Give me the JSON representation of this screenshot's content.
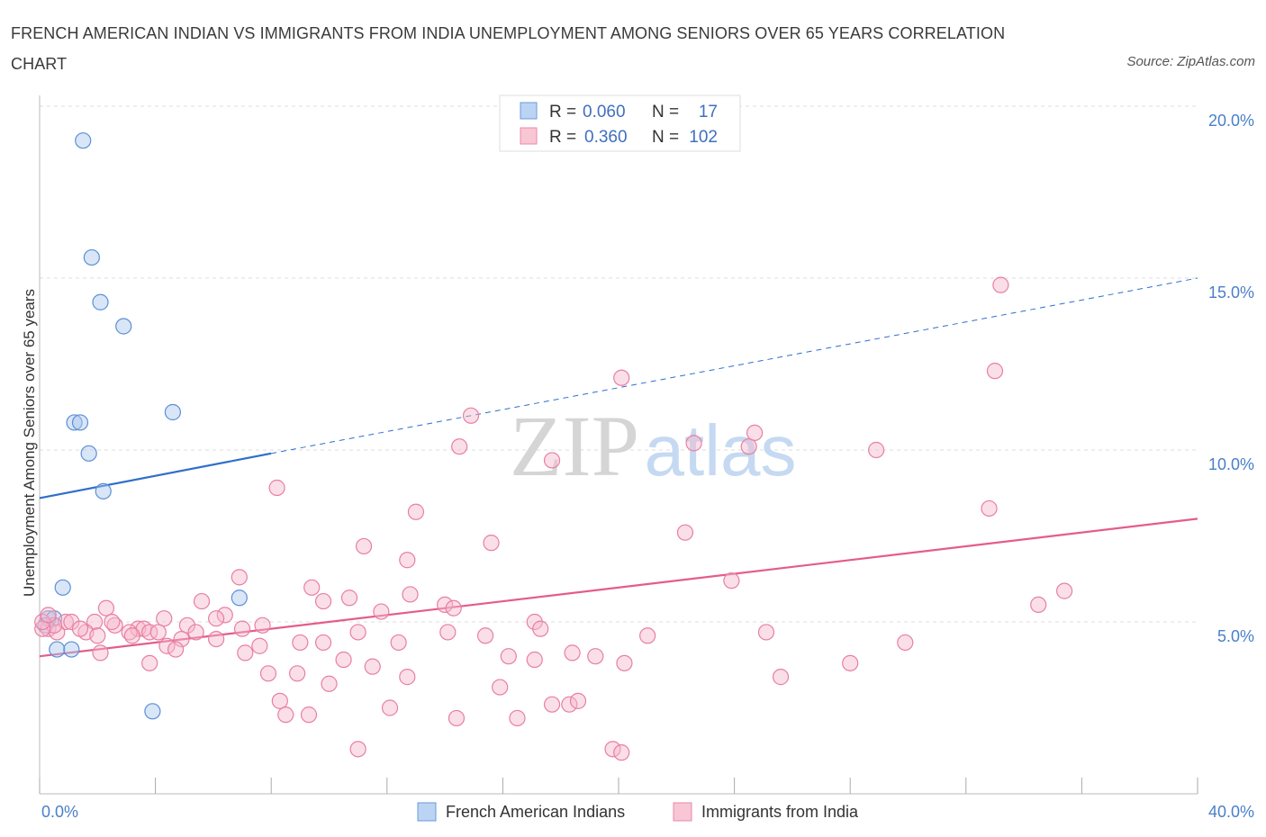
{
  "title": "FRENCH AMERICAN INDIAN VS IMMIGRANTS FROM INDIA UNEMPLOYMENT AMONG SENIORS OVER 65 YEARS CORRELATION CHART",
  "source": "Source: ZipAtlas.com",
  "watermark": {
    "zip": "ZIP",
    "atlas": "atlas"
  },
  "legend": {
    "r_label": "R =",
    "n_label": "N =",
    "series1": {
      "r": "0.060",
      "n": "17"
    },
    "series2": {
      "r": "0.360",
      "n": "102"
    }
  },
  "chart_data": {
    "type": "scatter",
    "xlabel": "",
    "ylabel": "Unemployment Among Seniors over 65 years",
    "xlim": [
      0,
      40
    ],
    "ylim": [
      0,
      20
    ],
    "x_tick_labels": [
      {
        "value": 0,
        "label": "0.0%"
      },
      {
        "value": 40,
        "label": "40.0%"
      }
    ],
    "y_tick_labels": [
      {
        "value": 5,
        "label": "5.0%"
      },
      {
        "value": 10,
        "label": "10.0%"
      },
      {
        "value": 15,
        "label": "15.0%"
      },
      {
        "value": 20,
        "label": "20.0%"
      }
    ],
    "grid": true,
    "legend_position": "top-center",
    "series": [
      {
        "name": "French American Indians",
        "color": "#a9c8ee",
        "stroke": "#5d8fd6",
        "trend_color": "#2f6fc9",
        "trend": {
          "x0": 0,
          "y0": 8.6,
          "x1": 8.0,
          "y1": 9.9,
          "dash_to_x": 40,
          "dash_to_y": 15.0
        },
        "points": [
          [
            1.5,
            19.0
          ],
          [
            1.8,
            15.6
          ],
          [
            2.1,
            14.3
          ],
          [
            2.9,
            13.6
          ],
          [
            1.2,
            10.8
          ],
          [
            1.4,
            10.8
          ],
          [
            4.6,
            11.1
          ],
          [
            1.7,
            9.9
          ],
          [
            2.2,
            8.8
          ],
          [
            0.8,
            6.0
          ],
          [
            6.9,
            5.7
          ],
          [
            0.3,
            5.1
          ],
          [
            0.5,
            5.1
          ],
          [
            0.6,
            4.2
          ],
          [
            1.1,
            4.2
          ],
          [
            3.9,
            2.4
          ],
          [
            0.2,
            4.9
          ]
        ]
      },
      {
        "name": "Immigrants from India",
        "color": "#f6b8cb",
        "stroke": "#e87fa1",
        "trend_color": "#e45c8c",
        "trend": {
          "x0": 0,
          "y0": 4.0,
          "x1": 40,
          "y1": 8.0
        },
        "points": [
          [
            33.2,
            14.8
          ],
          [
            20.1,
            12.1
          ],
          [
            33.0,
            12.3
          ],
          [
            14.9,
            11.0
          ],
          [
            24.7,
            10.5
          ],
          [
            14.5,
            10.1
          ],
          [
            22.6,
            10.2
          ],
          [
            24.5,
            10.1
          ],
          [
            28.9,
            10.0
          ],
          [
            17.7,
            9.7
          ],
          [
            8.2,
            8.9
          ],
          [
            13.0,
            8.2
          ],
          [
            32.8,
            8.3
          ],
          [
            22.3,
            7.6
          ],
          [
            11.2,
            7.2
          ],
          [
            15.6,
            7.3
          ],
          [
            12.7,
            6.8
          ],
          [
            6.9,
            6.3
          ],
          [
            9.4,
            6.0
          ],
          [
            10.7,
            5.7
          ],
          [
            12.8,
            5.8
          ],
          [
            23.9,
            6.2
          ],
          [
            35.4,
            5.9
          ],
          [
            5.6,
            5.6
          ],
          [
            9.8,
            5.6
          ],
          [
            14.0,
            5.5
          ],
          [
            14.3,
            5.4
          ],
          [
            2.3,
            5.4
          ],
          [
            6.4,
            5.2
          ],
          [
            11.8,
            5.3
          ],
          [
            17.1,
            5.0
          ],
          [
            34.5,
            5.5
          ],
          [
            4.3,
            5.1
          ],
          [
            6.1,
            5.1
          ],
          [
            0.9,
            5.0
          ],
          [
            1.9,
            5.0
          ],
          [
            2.6,
            4.9
          ],
          [
            5.1,
            4.9
          ],
          [
            7.7,
            4.9
          ],
          [
            3.4,
            4.8
          ],
          [
            3.6,
            4.8
          ],
          [
            7.0,
            4.8
          ],
          [
            0.3,
            4.8
          ],
          [
            0.6,
            4.7
          ],
          [
            1.6,
            4.7
          ],
          [
            3.1,
            4.7
          ],
          [
            3.8,
            4.7
          ],
          [
            4.1,
            4.7
          ],
          [
            5.4,
            4.7
          ],
          [
            11.0,
            4.7
          ],
          [
            14.1,
            4.7
          ],
          [
            17.3,
            4.8
          ],
          [
            21.0,
            4.6
          ],
          [
            25.1,
            4.7
          ],
          [
            2.0,
            4.6
          ],
          [
            3.2,
            4.6
          ],
          [
            4.9,
            4.5
          ],
          [
            6.1,
            4.5
          ],
          [
            9.0,
            4.4
          ],
          [
            9.8,
            4.4
          ],
          [
            12.4,
            4.4
          ],
          [
            15.4,
            4.6
          ],
          [
            29.9,
            4.4
          ],
          [
            0.5,
            4.9
          ],
          [
            0.1,
            4.8
          ],
          [
            4.4,
            4.3
          ],
          [
            7.6,
            4.3
          ],
          [
            2.1,
            4.1
          ],
          [
            4.7,
            4.2
          ],
          [
            7.1,
            4.1
          ],
          [
            10.5,
            3.9
          ],
          [
            16.2,
            4.0
          ],
          [
            17.1,
            3.9
          ],
          [
            18.4,
            4.1
          ],
          [
            19.2,
            4.0
          ],
          [
            3.8,
            3.8
          ],
          [
            11.5,
            3.7
          ],
          [
            20.2,
            3.8
          ],
          [
            28.0,
            3.8
          ],
          [
            7.9,
            3.5
          ],
          [
            8.9,
            3.5
          ],
          [
            12.7,
            3.4
          ],
          [
            25.6,
            3.4
          ],
          [
            10.0,
            3.2
          ],
          [
            15.9,
            3.1
          ],
          [
            8.3,
            2.7
          ],
          [
            17.7,
            2.6
          ],
          [
            18.3,
            2.6
          ],
          [
            18.6,
            2.7
          ],
          [
            12.1,
            2.5
          ],
          [
            8.5,
            2.3
          ],
          [
            9.3,
            2.3
          ],
          [
            14.4,
            2.2
          ],
          [
            16.5,
            2.2
          ],
          [
            11.0,
            1.3
          ],
          [
            19.8,
            1.3
          ],
          [
            20.1,
            1.2
          ],
          [
            0.1,
            5.0
          ],
          [
            0.3,
            5.2
          ],
          [
            1.1,
            5.0
          ],
          [
            1.4,
            4.8
          ],
          [
            2.5,
            5.0
          ]
        ]
      }
    ]
  }
}
